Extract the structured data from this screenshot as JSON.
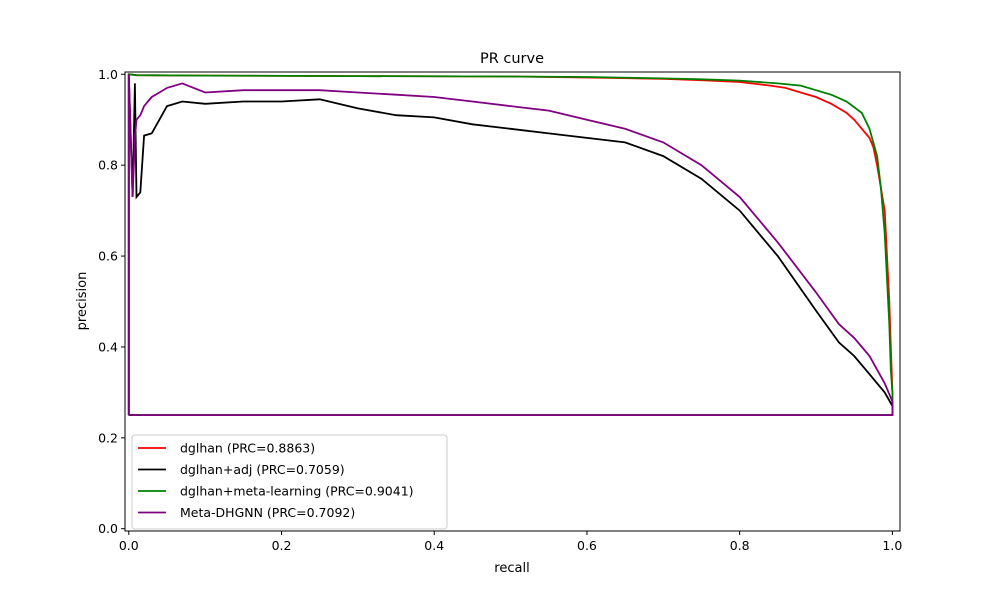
{
  "chart_data": {
    "type": "line",
    "title": "PR curve",
    "xlabel": "recall",
    "ylabel": "precision",
    "xlim": [
      -0.005,
      1.01
    ],
    "ylim": [
      -0.005,
      1.005
    ],
    "xticks": [
      0.0,
      0.2,
      0.4,
      0.6,
      0.8,
      1.0
    ],
    "xtick_labels": [
      "0.0",
      "0.2",
      "0.4",
      "0.6",
      "0.8",
      "1.0"
    ],
    "yticks": [
      0.0,
      0.2,
      0.4,
      0.6,
      0.8,
      1.0
    ],
    "ytick_labels": [
      "0.0",
      "0.2",
      "0.4",
      "0.6",
      "0.8",
      "1.0"
    ],
    "grid": false,
    "legend_position": "lower-left",
    "series": [
      {
        "name": "dglhan (PRC=0.8863)",
        "color": "#ff0000",
        "x": [
          0,
          0,
          0.01,
          0.1,
          0.3,
          0.5,
          0.6,
          0.7,
          0.75,
          0.8,
          0.84,
          0.86,
          0.88,
          0.9,
          0.92,
          0.94,
          0.95,
          0.96,
          0.97,
          0.975,
          0.98,
          0.985,
          0.99,
          0.993,
          0.996,
          0.998,
          1,
          1,
          0
        ],
        "y": [
          0.25,
          1,
          0.998,
          0.997,
          0.996,
          0.995,
          0.993,
          0.99,
          0.987,
          0.983,
          0.975,
          0.97,
          0.96,
          0.95,
          0.935,
          0.915,
          0.9,
          0.88,
          0.86,
          0.84,
          0.8,
          0.75,
          0.7,
          0.6,
          0.5,
          0.4,
          0.3,
          0.25,
          0.25
        ]
      },
      {
        "name": "dglhan+adj (PRC=0.7059)",
        "color": "#000000",
        "x": [
          0,
          0,
          0.005,
          0.008,
          0.01,
          0.015,
          0.02,
          0.03,
          0.04,
          0.05,
          0.07,
          0.1,
          0.15,
          0.2,
          0.25,
          0.3,
          0.35,
          0.4,
          0.45,
          0.5,
          0.55,
          0.6,
          0.65,
          0.7,
          0.75,
          0.8,
          0.85,
          0.9,
          0.93,
          0.95,
          0.97,
          0.98,
          0.99,
          1,
          1,
          0
        ],
        "y": [
          0.25,
          1,
          0.73,
          0.98,
          0.73,
          0.74,
          0.865,
          0.87,
          0.9,
          0.93,
          0.94,
          0.935,
          0.94,
          0.94,
          0.945,
          0.925,
          0.91,
          0.905,
          0.89,
          0.88,
          0.87,
          0.86,
          0.85,
          0.82,
          0.77,
          0.7,
          0.6,
          0.48,
          0.41,
          0.38,
          0.34,
          0.32,
          0.3,
          0.27,
          0.25,
          0.25
        ]
      },
      {
        "name": "dglhan+meta-learning (PRC=0.9041)",
        "color": "#008000",
        "x": [
          0,
          0,
          0.01,
          0.1,
          0.3,
          0.5,
          0.6,
          0.7,
          0.75,
          0.8,
          0.85,
          0.88,
          0.9,
          0.92,
          0.94,
          0.96,
          0.97,
          0.98,
          0.985,
          0.99,
          0.993,
          0.996,
          0.998,
          1,
          1,
          0
        ],
        "y": [
          0.25,
          1,
          0.998,
          0.997,
          0.996,
          0.995,
          0.994,
          0.991,
          0.989,
          0.986,
          0.98,
          0.975,
          0.965,
          0.955,
          0.94,
          0.915,
          0.88,
          0.82,
          0.75,
          0.65,
          0.55,
          0.45,
          0.35,
          0.3,
          0.25,
          0.25
        ]
      },
      {
        "name": "Meta-DHGNN (PRC=0.7092)",
        "color": "#800080",
        "x": [
          0,
          0,
          0.005,
          0.008,
          0.01,
          0.015,
          0.02,
          0.03,
          0.04,
          0.05,
          0.07,
          0.1,
          0.15,
          0.2,
          0.25,
          0.3,
          0.35,
          0.4,
          0.45,
          0.5,
          0.55,
          0.6,
          0.65,
          0.7,
          0.75,
          0.8,
          0.85,
          0.9,
          0.93,
          0.95,
          0.97,
          0.98,
          0.99,
          1,
          1,
          0
        ],
        "y": [
          0.25,
          1,
          0.73,
          0.86,
          0.9,
          0.91,
          0.93,
          0.95,
          0.96,
          0.97,
          0.98,
          0.96,
          0.965,
          0.965,
          0.965,
          0.96,
          0.955,
          0.95,
          0.94,
          0.93,
          0.92,
          0.9,
          0.88,
          0.85,
          0.8,
          0.73,
          0.63,
          0.52,
          0.45,
          0.42,
          0.38,
          0.35,
          0.32,
          0.28,
          0.25,
          0.25
        ]
      }
    ]
  }
}
